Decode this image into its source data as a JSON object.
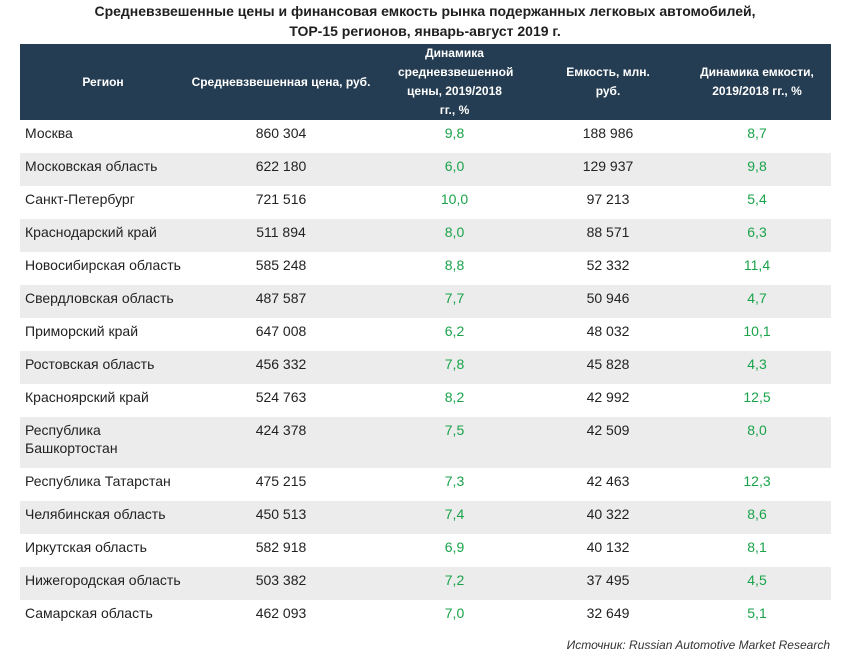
{
  "title_line1": "Средневзвешенные цены и финансовая емкость рынка подержанных легковых автомобилей,",
  "title_line2": "ТОР-15 регионов, январь-август 2019 г.",
  "headers": {
    "region": "Регион",
    "price": "Средневзвешенная цена, руб.",
    "price_dynamics": "Динамика средневзвешенной цены, 2019/2018 гг., %",
    "capacity": "Емкость, млн. руб.",
    "capacity_dynamics": "Динамика емкости, 2019/2018 гг., %"
  },
  "rows": [
    {
      "region": "Москва",
      "price": "860 304",
      "price_dyn": "9,8",
      "capacity": "188 986",
      "cap_dyn": "8,7"
    },
    {
      "region": "Московская область",
      "price": "622 180",
      "price_dyn": "6,0",
      "capacity": "129 937",
      "cap_dyn": "9,8"
    },
    {
      "region": "Санкт-Петербург",
      "price": "721 516",
      "price_dyn": "10,0",
      "capacity": "97 213",
      "cap_dyn": "5,4"
    },
    {
      "region": "Краснодарский край",
      "price": "511 894",
      "price_dyn": "8,0",
      "capacity": "88 571",
      "cap_dyn": "6,3"
    },
    {
      "region": "Новосибирская область",
      "price": "585 248",
      "price_dyn": "8,8",
      "capacity": "52 332",
      "cap_dyn": "11,4"
    },
    {
      "region": "Свердловская область",
      "price": "487 587",
      "price_dyn": "7,7",
      "capacity": "50 946",
      "cap_dyn": "4,7"
    },
    {
      "region": "Приморский край",
      "price": "647 008",
      "price_dyn": "6,2",
      "capacity": "48 032",
      "cap_dyn": "10,1"
    },
    {
      "region": "Ростовская область",
      "price": "456 332",
      "price_dyn": "7,8",
      "capacity": "45 828",
      "cap_dyn": "4,3"
    },
    {
      "region": "Красноярский край",
      "price": "524 763",
      "price_dyn": "8,2",
      "capacity": "42 992",
      "cap_dyn": "12,5"
    },
    {
      "region": "Республика Башкортостан",
      "price": "424 378",
      "price_dyn": "7,5",
      "capacity": "42 509",
      "cap_dyn": "8,0"
    },
    {
      "region": "Республика Татарстан",
      "price": "475 215",
      "price_dyn": "7,3",
      "capacity": "42 463",
      "cap_dyn": "12,3"
    },
    {
      "region": "Челябинская область",
      "price": "450 513",
      "price_dyn": "7,4",
      "capacity": "40 322",
      "cap_dyn": "8,6"
    },
    {
      "region": "Иркутская область",
      "price": "582 918",
      "price_dyn": "6,9",
      "capacity": "40 132",
      "cap_dyn": "8,1"
    },
    {
      "region": "Нижегородская область",
      "price": "503 382",
      "price_dyn": "7,2",
      "capacity": "37 495",
      "cap_dyn": "4,5"
    },
    {
      "region": "Самарская область",
      "price": "462 093",
      "price_dyn": "7,0",
      "capacity": "32 649",
      "cap_dyn": "5,1"
    }
  ],
  "source": "Источник: Russian Automotive Market Research",
  "colors": {
    "header_bg": "#253d52",
    "positive": "#1aa34a",
    "stripe": "#ececec"
  }
}
